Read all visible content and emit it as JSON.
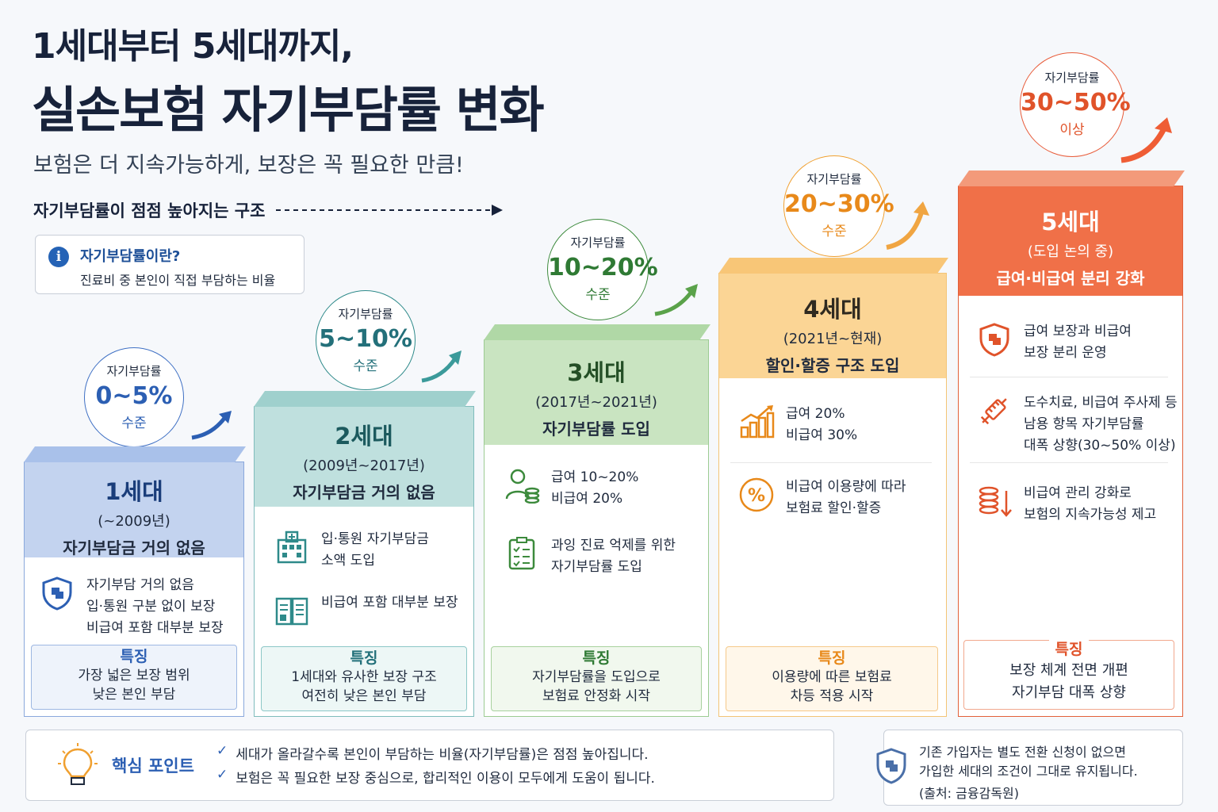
{
  "title_line1": "1세대부터 5세대까지,",
  "title_line2": "실손보험 자기부담률 변화",
  "subtitle": "보험은 더 지속가능하게, 보장은 꼭 필요한 만큼!",
  "trend_label": "자기부담률이 점점 높아지는 구조",
  "info_box": {
    "title": "자기부담률이란?",
    "desc": "진료비 중 본인이 직접 부담하는 비율",
    "icon": "info-icon"
  },
  "generations": [
    {
      "gen": "1세대",
      "period": "(~2009년)",
      "desc": "자기부담금 거의 없음",
      "color": "#3f70c4",
      "bubble": {
        "label": "자기부담률",
        "value": "0~5%",
        "suffix": "수준"
      },
      "items": [
        {
          "icon": "shield-icon",
          "lines": [
            "자기부담 거의 없음",
            "입·통원 구분 없이 보장",
            "비급여 포함 대부분 보장"
          ]
        }
      ],
      "feature_label": "특징",
      "feature_lines": [
        "가장 넓은 보장 범위",
        "낮은 본인 부담"
      ]
    },
    {
      "gen": "2세대",
      "period": "(2009년~2017년)",
      "desc": "자기부담금 거의 없음",
      "color": "#2e8a8a",
      "bubble": {
        "label": "자기부담률",
        "value": "5~10%",
        "suffix": "수준"
      },
      "items": [
        {
          "icon": "hospital-icon",
          "lines": [
            "입·통원 자기부담금",
            "소액 도입"
          ]
        },
        {
          "icon": "document-icon",
          "lines": [
            "비급여 포함 대부분 보장"
          ]
        }
      ],
      "feature_label": "특징",
      "feature_lines": [
        "1세대와 유사한 보장 구조",
        "여전히 낮은 본인 부담"
      ]
    },
    {
      "gen": "3세대",
      "period": "(2017년~2021년)",
      "desc": "자기부담률 도입",
      "color": "#3c8a3c",
      "bubble": {
        "label": "자기부담률",
        "value": "10~20%",
        "suffix": "수준"
      },
      "items": [
        {
          "icon": "person-coins-icon",
          "lines": [
            "급여 10~20%",
            "비급여 20%"
          ]
        },
        {
          "icon": "checklist-icon",
          "lines": [
            "과잉 진료 억제를 위한",
            "자기부담률 도입"
          ]
        }
      ],
      "feature_label": "특징",
      "feature_lines": [
        "자기부담률을 도입으로",
        "보험료 안정화 시작"
      ]
    },
    {
      "gen": "4세대",
      "period": "(2021년~현재)",
      "desc": "할인·할증 구조 도입",
      "color": "#e8891a",
      "bubble": {
        "label": "자기부담률",
        "value": "20~30%",
        "suffix": "수준"
      },
      "items": [
        {
          "icon": "bar-chart-icon",
          "lines": [
            "급여 20%",
            "비급여 30%"
          ]
        },
        {
          "icon": "percent-icon",
          "lines": [
            "비급여 이용량에 따라",
            "보험료 할인·할증"
          ]
        }
      ],
      "feature_label": "특징",
      "feature_lines": [
        "이용량에 따른 보험료",
        "차등 적용 시작"
      ]
    },
    {
      "gen": "5세대",
      "period": "(도입 논의 중)",
      "desc": "급여·비급여 분리 강화",
      "color": "#e0532a",
      "bubble": {
        "label": "자기부담률",
        "value": "30~50%",
        "suffix": "이상"
      },
      "items": [
        {
          "icon": "shield-icon",
          "lines": [
            "급여 보장과 비급여",
            "보장 분리 운영"
          ]
        },
        {
          "icon": "syringe-icon",
          "lines": [
            "도수치료, 비급여 주사제 등",
            "남용 항목 자기부담률",
            "대폭 상향(30~50% 이상)"
          ]
        },
        {
          "icon": "coins-down-icon",
          "lines": [
            "비급여 관리 강화로",
            "보험의 지속가능성 제고"
          ]
        }
      ],
      "feature_label": "특징",
      "feature_lines": [
        "보장 체계 전면 개편",
        "자기부담 대폭 상향"
      ]
    }
  ],
  "key_points": {
    "icon": "lightbulb-icon",
    "label": "핵심 포인트",
    "points": [
      "세대가 올라갈수록 본인이 부담하는 비율(자기부담률)은 점점 높아집니다.",
      "보험은 꼭 필요한 보장 중심으로, 합리적인 이용이 모두에게 도움이 됩니다."
    ]
  },
  "note": {
    "icon": "shield-icon",
    "lines": [
      "기존 가입자는 별도 전환 신청이 없으면",
      "가입한 세대의 조건이 그대로 유지됩니다.",
      "(출처: 금융감독원)"
    ]
  }
}
